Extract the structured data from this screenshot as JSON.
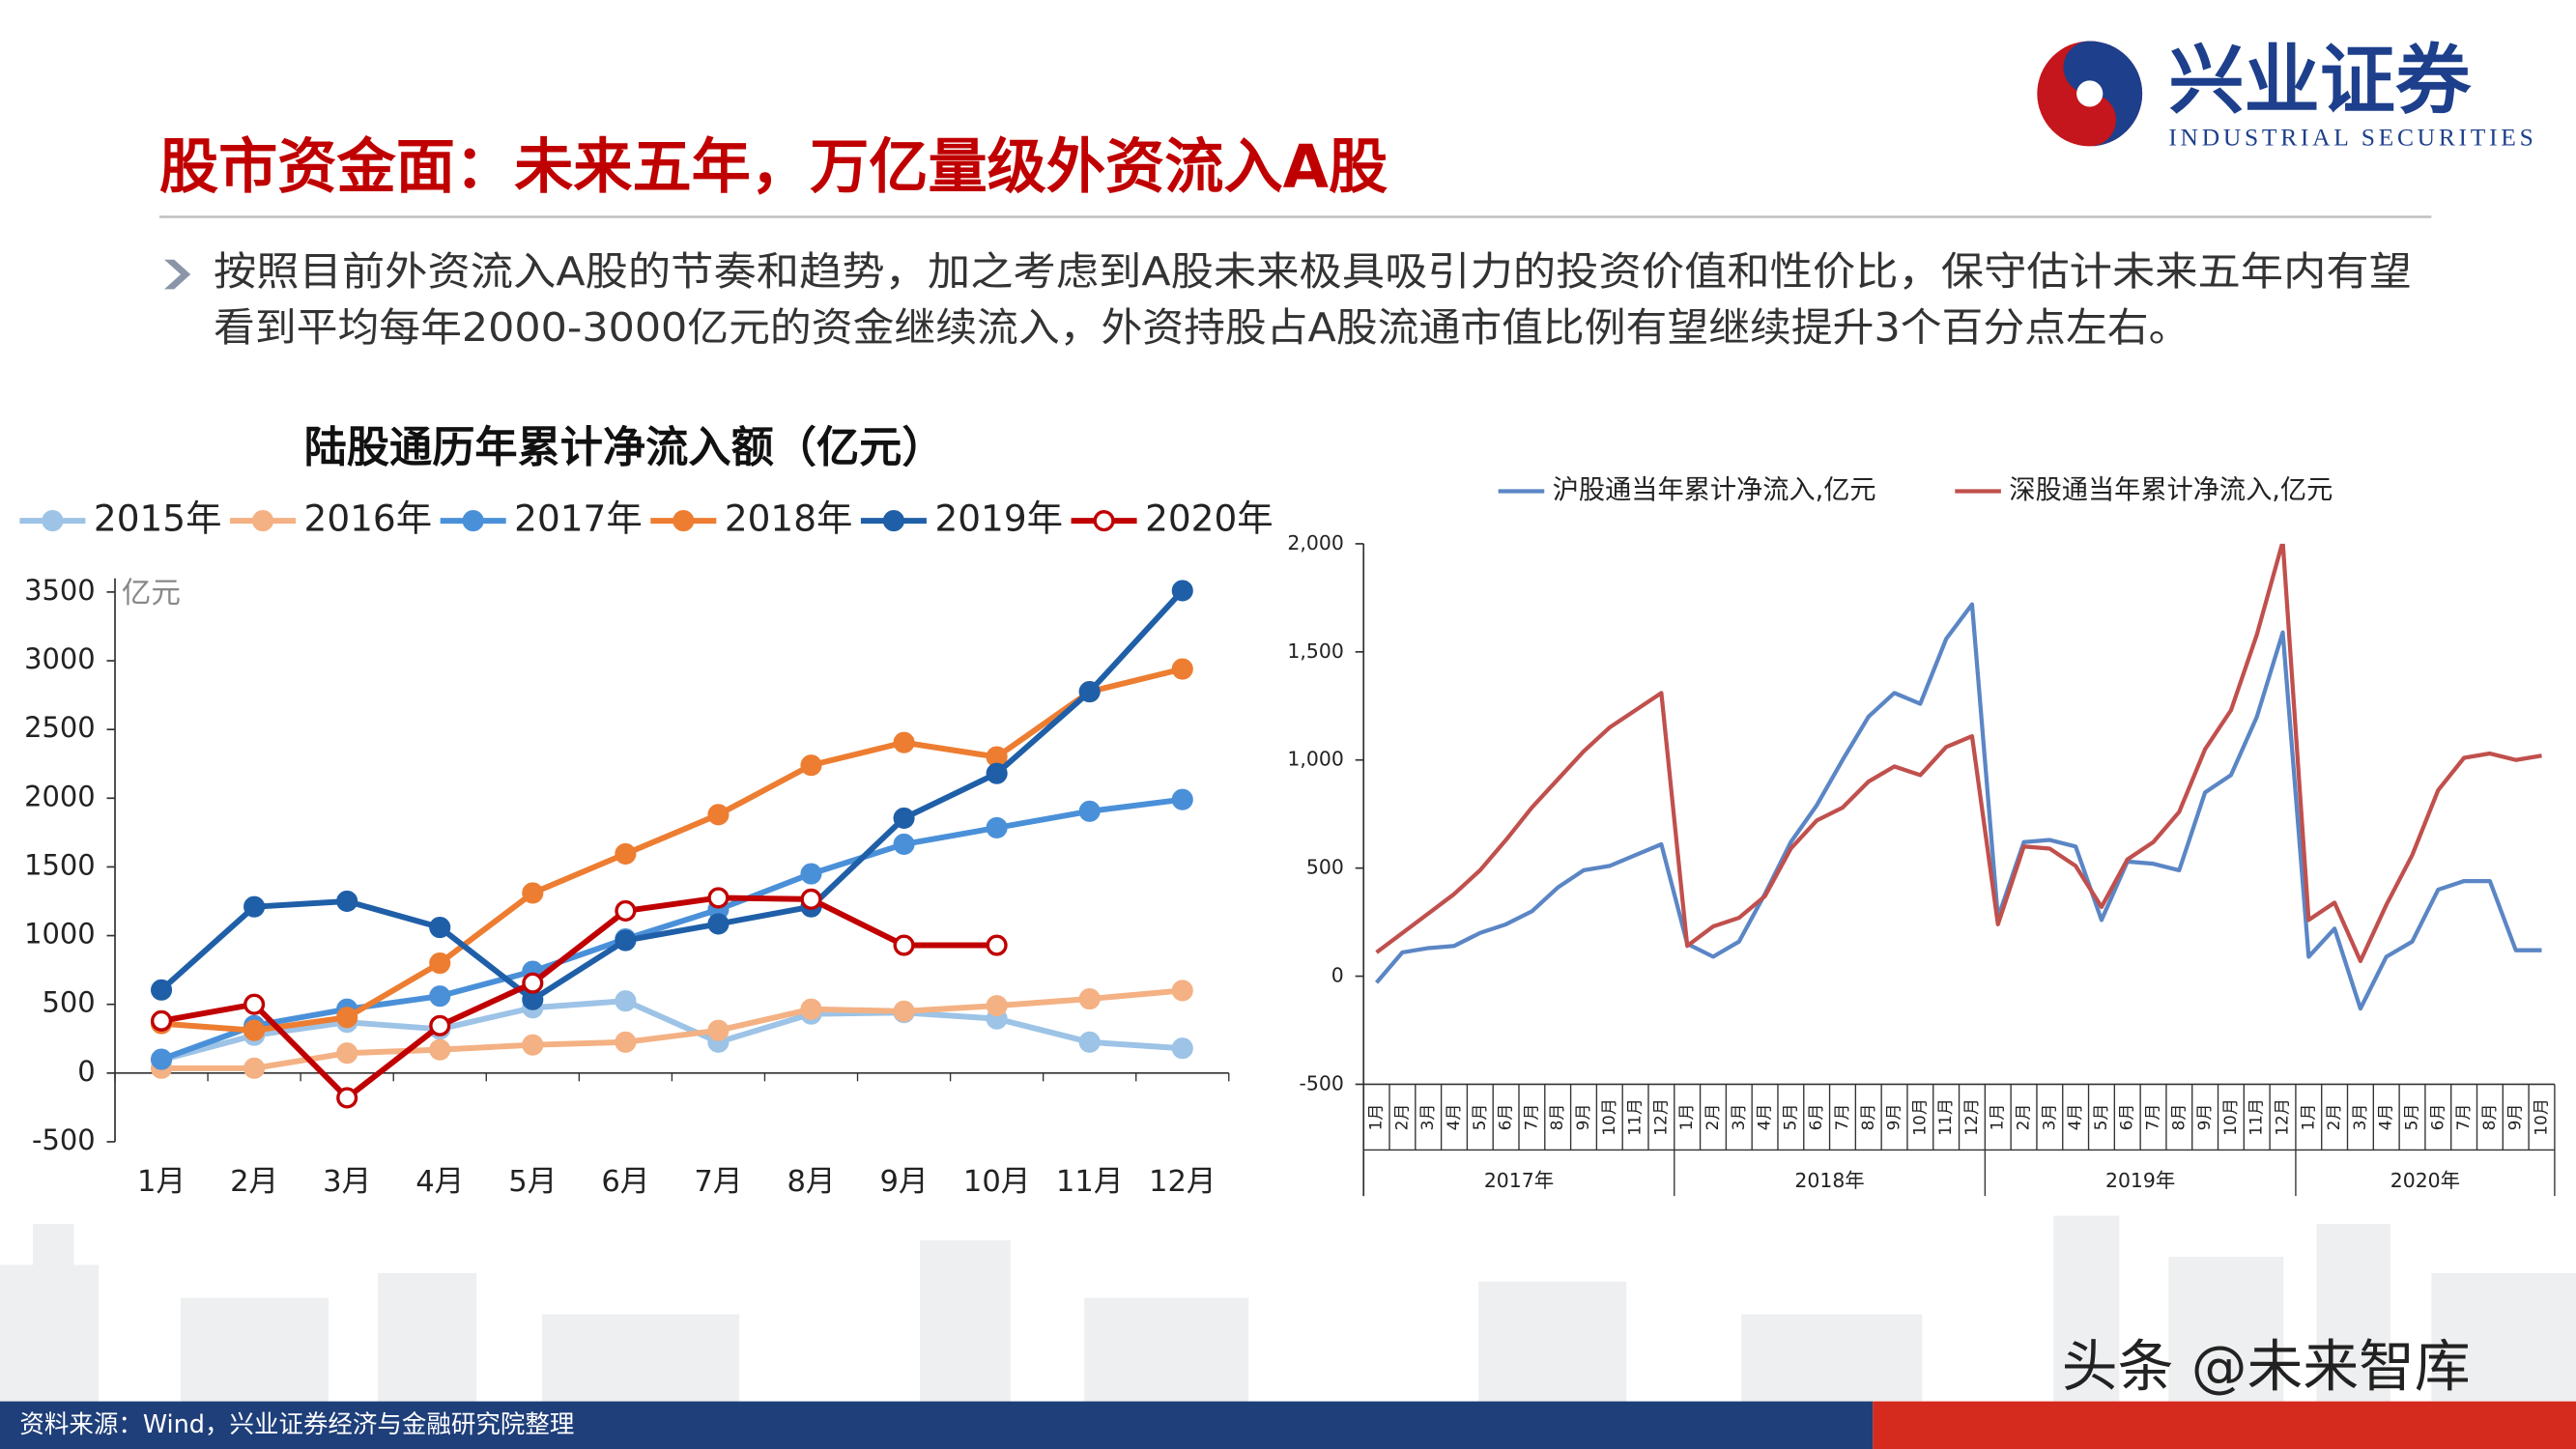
{
  "header": {
    "title": "股市资金面：未来五年，万亿量级外资流入A股",
    "logo_cn": "兴业证券",
    "logo_en": "INDUSTRIAL SECURITIES"
  },
  "bullet_lines": [
    "按照目前外资流入A股的节奏和趋势，加之考虑到A股未来极具吸引力的投资价值和性价比，保守估计未来五年内有望",
    "看到平均每年2000-3000亿元的资金继续流入，外资持股占A股流通市值比例有望继续提升3个百分点左右。"
  ],
  "footer": {
    "source": "资料来源：Wind，兴业证券经济与金融研究院整理",
    "watermark": "头条 @未来智库"
  },
  "chart_data": [
    {
      "type": "line",
      "title": "陆股通历年累计净流入额（亿元）",
      "ylabel": "亿元",
      "markers": true,
      "legend": "top",
      "categories": [
        "1月",
        "2月",
        "3月",
        "4月",
        "5月",
        "6月",
        "7月",
        "8月",
        "9月",
        "10月",
        "11月",
        "12月"
      ],
      "ylim": [
        -500,
        3600
      ],
      "yticks": [
        -500,
        0,
        500,
        1000,
        1500,
        2000,
        2500,
        3000,
        3500
      ],
      "series": [
        {
          "name": "2015年",
          "color": "#9dc3e6",
          "values": [
            95,
            275,
            370,
            320,
            475,
            525,
            225,
            430,
            440,
            395,
            225,
            180
          ]
        },
        {
          "name": "2016年",
          "color": "#f4b183",
          "values": [
            35,
            35,
            145,
            170,
            205,
            225,
            310,
            465,
            450,
            490,
            540,
            600
          ]
        },
        {
          "name": "2017年",
          "color": "#4a90d9",
          "values": [
            100,
            345,
            465,
            560,
            740,
            975,
            1190,
            1450,
            1665,
            1785,
            1905,
            1990
          ]
        },
        {
          "name": "2018年",
          "color": "#ed7d31",
          "values": [
            360,
            310,
            405,
            800,
            1310,
            1595,
            1880,
            2240,
            2405,
            2300,
            2775,
            2940
          ]
        },
        {
          "name": "2019年",
          "color": "#1f5fa8",
          "values": [
            605,
            1210,
            1250,
            1060,
            535,
            965,
            1085,
            1210,
            1855,
            2180,
            2775,
            3510
          ]
        },
        {
          "name": "2020年",
          "color": "#c00000",
          "hollow": true,
          "values": [
            380,
            500,
            -180,
            345,
            655,
            1180,
            1275,
            1265,
            930,
            930,
            null,
            null
          ]
        }
      ]
    },
    {
      "type": "line",
      "markers": false,
      "legend": "top",
      "categories": [
        "1月",
        "2月",
        "3月",
        "4月",
        "5月",
        "6月",
        "7月",
        "8月",
        "9月",
        "10月",
        "11月",
        "12月",
        "1月",
        "2月",
        "3月",
        "4月",
        "5月",
        "6月",
        "7月",
        "8月",
        "9月",
        "10月",
        "11月",
        "12月",
        "1月",
        "2月",
        "3月",
        "4月",
        "5月",
        "6月",
        "7月",
        "8月",
        "9月",
        "10月",
        "11月",
        "12月",
        "1月",
        "2月",
        "3月",
        "4月",
        "5月",
        "6月",
        "7月",
        "8月",
        "9月",
        "10月"
      ],
      "groups": [
        "2017年",
        "2018年",
        "2019年",
        "2020年"
      ],
      "ylim": [
        -500,
        2000
      ],
      "yticks": [
        {
          "value": -500,
          "label": "-500"
        },
        0,
        500,
        {
          "value": 1000,
          "label": "1,000"
        },
        {
          "value": 1500,
          "label": "1,500"
        },
        {
          "value": 2000,
          "label": "2,000"
        }
      ],
      "series": [
        {
          "name": "沪股通当年累计净流入,亿元",
          "color": "#5b86c5",
          "values": [
            -30,
            110,
            130,
            140,
            200,
            240,
            300,
            410,
            490,
            510,
            560,
            610,
            150,
            90,
            160,
            380,
            620,
            790,
            1000,
            1200,
            1310,
            1260,
            1560,
            1720,
            270,
            620,
            630,
            600,
            260,
            530,
            520,
            490,
            850,
            930,
            1200,
            1590,
            90,
            220,
            -150,
            90,
            160,
            400,
            440,
            440,
            120,
            120
          ]
        },
        {
          "name": "深股通当年累计净流入,亿元",
          "color": "#c0504d",
          "values": [
            110,
            200,
            290,
            380,
            490,
            630,
            780,
            910,
            1040,
            1150,
            1230,
            1310,
            140,
            230,
            270,
            370,
            590,
            720,
            780,
            900,
            970,
            930,
            1060,
            1110,
            240,
            600,
            590,
            510,
            320,
            540,
            620,
            760,
            1050,
            1230,
            1580,
            2010,
            260,
            340,
            70,
            330,
            560,
            860,
            1010,
            1030,
            1000,
            1020
          ]
        }
      ]
    }
  ]
}
